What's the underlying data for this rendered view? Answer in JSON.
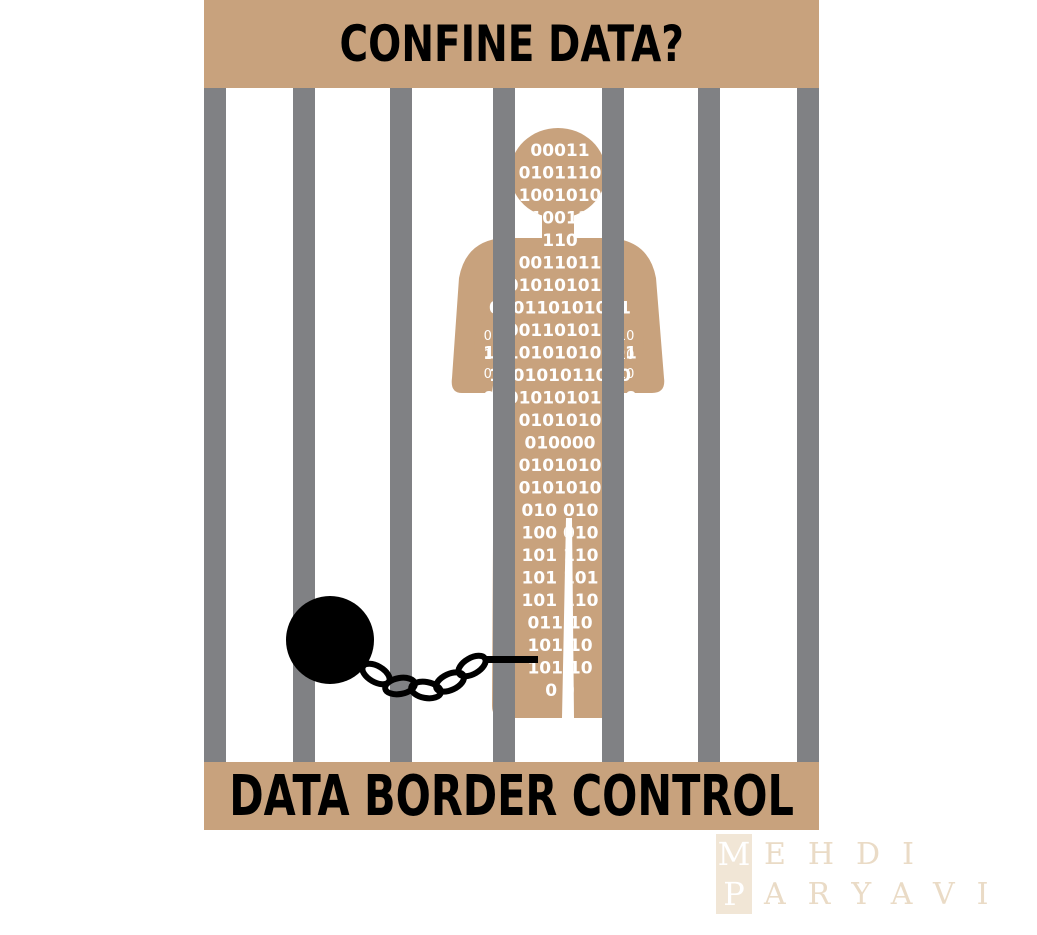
{
  "poster": {
    "top_title": "CONFINE DATA?",
    "bottom_title": "DATA BORDER CONTROL"
  },
  "figure": {
    "binary_rows": [
      "00011",
      "0101110",
      "1001010",
      "10011",
      "110",
      "0011011",
      "10101010101",
      "010110101001",
      "00011010101",
      "1010101010101",
      "110101011010",
      "0101010101010",
      "0101010",
      "010000",
      "0101010",
      "0101010",
      "010 010",
      "100 010",
      "101 110",
      "101 101",
      "101 110",
      "011 10",
      "101 10",
      "101 10",
      "0 0"
    ],
    "hand_digits": [
      "010",
      "110",
      "010"
    ]
  },
  "watermark": {
    "line1_initial": "M",
    "line1_rest": "EHDI",
    "line2_initial": "P",
    "line2_rest": "ARYAVI"
  },
  "colors": {
    "banner": "#c8a27d",
    "figure": "#c8a27d",
    "bars": "#808184",
    "ball": "#000000",
    "digits": "#ffffff"
  }
}
